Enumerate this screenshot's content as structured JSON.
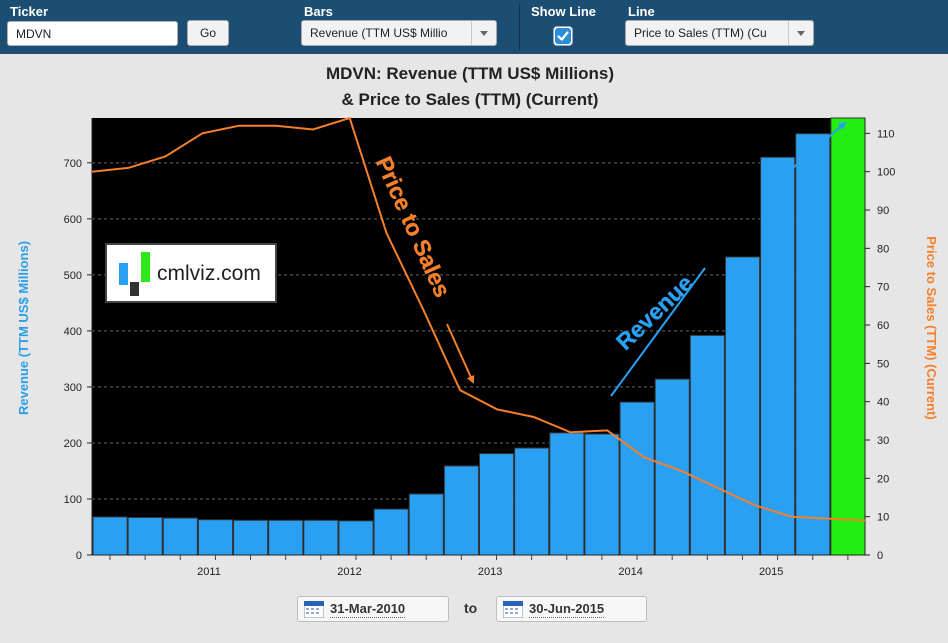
{
  "controls": {
    "ticker_label": "Ticker",
    "ticker_value": "MDVN",
    "go_label": "Go",
    "bars_label": "Bars",
    "bars_value": "Revenue (TTM US$ Millio",
    "show_line_label": "Show Line",
    "show_line_checked": true,
    "line_label": "Line",
    "line_value": "Price to Sales (TTM) (Cu"
  },
  "date_range": {
    "start": "31-Mar-2010",
    "separator": "to",
    "end": "30-Jun-2015"
  },
  "watermark": {
    "text": "cmlviz.com"
  },
  "colors": {
    "bar": "#2aa0f2",
    "highlight_bar": "#22ee11",
    "line": "#f57f2a",
    "plot_bg": "#000000",
    "topbar": "#1b4e72"
  },
  "chart_data": {
    "type": "bar",
    "title_line1": "MDVN: Revenue (TTM US$ Millions)",
    "title_line2": "& Price to Sales (TTM) (Current)",
    "ylabel": "Revenue (TTM US$ Millions)",
    "y2label": "Price to Sales (TTM) (Current)",
    "ylim": [
      0,
      780
    ],
    "y2lim": [
      0,
      114
    ],
    "yticks": [
      0,
      100,
      200,
      300,
      400,
      500,
      600,
      700
    ],
    "y2ticks": [
      0,
      10,
      20,
      30,
      40,
      50,
      60,
      70,
      80,
      90,
      100,
      110
    ],
    "xticks": [
      "2011",
      "2012",
      "2013",
      "2014",
      "2015"
    ],
    "legend": "none",
    "annotations": [
      "Price to Sales",
      "Revenue"
    ],
    "series": [
      {
        "name": "Revenue (TTM US$ Millions)",
        "values": [
          68,
          67,
          66,
          63,
          62,
          62,
          62,
          61,
          82,
          109,
          159,
          181,
          191,
          218,
          216,
          273,
          314,
          392,
          532,
          710,
          752
        ]
      },
      {
        "name": "Price to Sales (TTM) (Current)",
        "values": [
          100,
          101,
          104,
          110,
          112,
          112,
          111,
          114,
          84,
          64,
          43,
          38,
          36,
          32,
          32.5,
          25.5,
          22,
          17.5,
          13,
          10,
          9.5,
          9
        ]
      }
    ]
  }
}
